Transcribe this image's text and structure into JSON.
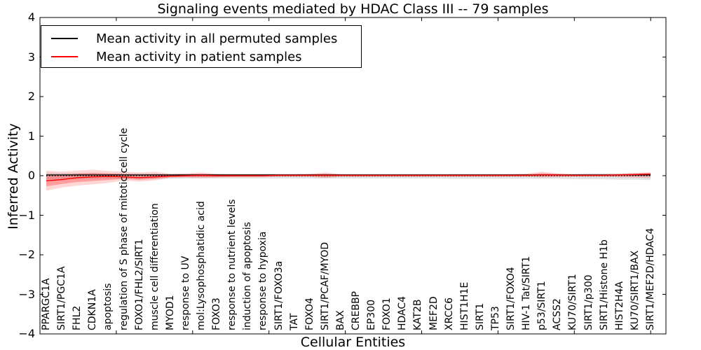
{
  "figure": {
    "background": "#ffffff",
    "accent_red": "#ff0000",
    "accent_black": "#000000"
  },
  "chart_data": {
    "type": "line",
    "title": "Signaling events mediated by HDAC Class III -- 79 samples",
    "xlabel": "Cellular Entities",
    "ylabel": "Inferred Activity",
    "ylim": [
      -4,
      4
    ],
    "yticks": [
      4,
      3,
      2,
      1,
      0,
      -1,
      -2,
      -3,
      -4
    ],
    "grid": false,
    "zero_line": {
      "value": 0,
      "style": "dotted",
      "color": "#000000"
    },
    "legend": {
      "position": "upper left",
      "entries": [
        {
          "label": "Mean activity in all permuted samples",
          "color": "#000000"
        },
        {
          "label": "Mean activity in patient samples",
          "color": "#ff0000"
        }
      ]
    },
    "categories": [
      "PPARGC1A",
      "SIRT1/PGC1A",
      "FHL2",
      "CDKN1A",
      "apoptosis",
      "regulation of S phase of mitotic cell cycle",
      "FOXO1/FHL2/SIRT1",
      "muscle cell differentiation",
      "MYOD1",
      "response to UV",
      "mol:Lysophosphatidic acid",
      "FOXO3",
      "response to nutrient levels",
      "induction of apoptosis",
      "response to hypoxia",
      "SIRT1/FOXO3a",
      "TAT",
      "FOXO4",
      "SIRT1/PCAF/MYOD",
      "BAX",
      "CREBBP",
      "EP300",
      "FOXO1",
      "HDAC4",
      "KAT2B",
      "MEF2D",
      "XRCC6",
      "HIST1H1E",
      "SIRT1",
      "TP53",
      "SIRT1/FOXO4",
      "HIV-1 Tat/SIRT1",
      "p53/SIRT1",
      "ACSS2",
      "KU70/SIRT1",
      "SIRT1/p300",
      "SIRT1/Histone H1b",
      "HIST2H4A",
      "KU70/SIRT1/BAX",
      "SIRT1/MEF2D/HDAC4"
    ],
    "series": [
      {
        "name": "Mean activity in all permuted samples",
        "color": "#000000",
        "band_color": "#000000",
        "band_opacity": 0.11,
        "values": [
          0.02,
          0.02,
          0.02,
          0.02,
          0.02,
          0.02,
          0.02,
          0.02,
          0.02,
          0.02,
          0.02,
          0.02,
          0.02,
          0.02,
          0.02,
          0.02,
          0.02,
          0.02,
          0.02,
          0.02,
          0.02,
          0.02,
          0.02,
          0.02,
          0.02,
          0.02,
          0.02,
          0.02,
          0.02,
          0.02,
          0.02,
          0.02,
          0.02,
          0.02,
          0.02,
          0.02,
          0.02,
          0.02,
          0.02,
          0.02
        ],
        "band_upper": [
          0.08,
          0.07,
          0.07,
          0.07,
          0.06,
          0.06,
          0.06,
          0.06,
          0.05,
          0.05,
          0.05,
          0.05,
          0.05,
          0.05,
          0.05,
          0.05,
          0.05,
          0.05,
          0.05,
          0.05,
          0.05,
          0.05,
          0.05,
          0.05,
          0.05,
          0.05,
          0.05,
          0.05,
          0.05,
          0.05,
          0.05,
          0.05,
          0.05,
          0.05,
          0.05,
          0.06,
          0.06,
          0.06,
          0.06,
          0.06
        ],
        "band_lower": [
          -0.1,
          -0.09,
          -0.09,
          -0.08,
          -0.08,
          -0.08,
          -0.08,
          -0.08,
          -0.07,
          -0.07,
          -0.07,
          -0.07,
          -0.07,
          -0.07,
          -0.07,
          -0.07,
          -0.07,
          -0.07,
          -0.07,
          -0.07,
          -0.07,
          -0.07,
          -0.07,
          -0.07,
          -0.07,
          -0.07,
          -0.08,
          -0.08,
          -0.08,
          -0.08,
          -0.08,
          -0.08,
          -0.08,
          -0.08,
          -0.09,
          -0.09,
          -0.09,
          -0.1,
          -0.1,
          -0.11
        ]
      },
      {
        "name": "Mean activity in patient samples",
        "color": "#ff0000",
        "band_color": "#ff0000",
        "band_opacity": 0.16,
        "values": [
          -0.13,
          -0.1,
          -0.05,
          -0.03,
          -0.02,
          -0.03,
          -0.05,
          -0.03,
          -0.01,
          0.0,
          0.01,
          0.0,
          0.0,
          0.0,
          0.0,
          0.01,
          0.01,
          0.01,
          0.01,
          0.01,
          0.01,
          0.01,
          0.01,
          0.01,
          0.01,
          0.01,
          0.01,
          0.01,
          0.01,
          0.01,
          0.01,
          0.01,
          0.02,
          0.02,
          0.01,
          0.01,
          0.01,
          0.02,
          0.03,
          0.04
        ],
        "band_upper": [
          0.13,
          0.1,
          0.13,
          0.15,
          0.12,
          0.1,
          0.08,
          0.1,
          0.05,
          0.06,
          0.08,
          0.05,
          0.04,
          0.04,
          0.04,
          0.04,
          0.04,
          0.05,
          0.08,
          0.04,
          0.03,
          0.03,
          0.03,
          0.03,
          0.03,
          0.03,
          0.03,
          0.03,
          0.03,
          0.03,
          0.04,
          0.05,
          0.1,
          0.06,
          0.04,
          0.04,
          0.04,
          0.05,
          0.07,
          0.09
        ],
        "band_lower": [
          -0.38,
          -0.3,
          -0.25,
          -0.22,
          -0.18,
          -0.12,
          -0.15,
          -0.12,
          -0.06,
          -0.05,
          -0.06,
          -0.05,
          -0.04,
          -0.04,
          -0.04,
          -0.03,
          -0.03,
          -0.03,
          -0.06,
          -0.03,
          -0.03,
          -0.03,
          -0.03,
          -0.03,
          -0.03,
          -0.03,
          -0.03,
          -0.03,
          -0.03,
          -0.03,
          -0.03,
          -0.03,
          -0.05,
          -0.04,
          -0.03,
          -0.03,
          -0.03,
          -0.04,
          -0.05,
          -0.06
        ]
      }
    ]
  }
}
